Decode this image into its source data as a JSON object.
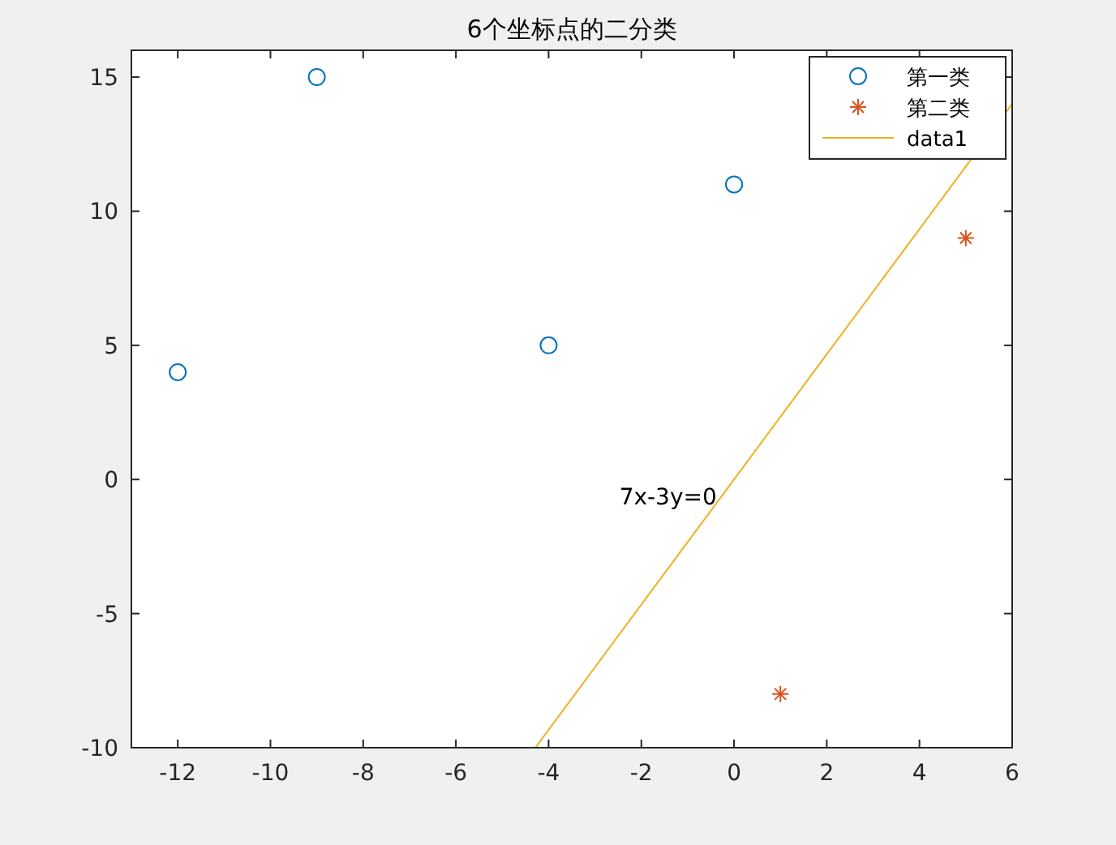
{
  "chart_data": {
    "type": "scatter",
    "title": "6个坐标点的二分类",
    "series": [
      {
        "name": "第一类",
        "marker": "circle",
        "color": "#0072bd",
        "x": [
          -12,
          -9,
          -4,
          0
        ],
        "values": [
          4,
          15,
          5,
          11
        ]
      },
      {
        "name": "第二类",
        "marker": "cross",
        "color": "#d95319",
        "x": [
          1,
          5
        ],
        "values": [
          -8,
          9
        ]
      },
      {
        "name": "data1",
        "type": "line",
        "marker": "none",
        "color": "#edb120",
        "x": [
          -4.2857,
          6
        ],
        "values": [
          -10,
          14
        ]
      }
    ],
    "annotations": [
      "7x-3y=0"
    ],
    "xlim": [
      -13,
      6
    ],
    "xticks": [
      -12,
      -10,
      -8,
      -6,
      -4,
      -2,
      0,
      2,
      4,
      6
    ],
    "ylim": [
      -10,
      16
    ],
    "yticks": [
      -10,
      -5,
      0,
      5,
      10,
      15
    ],
    "grid": false,
    "legend": "top right"
  }
}
